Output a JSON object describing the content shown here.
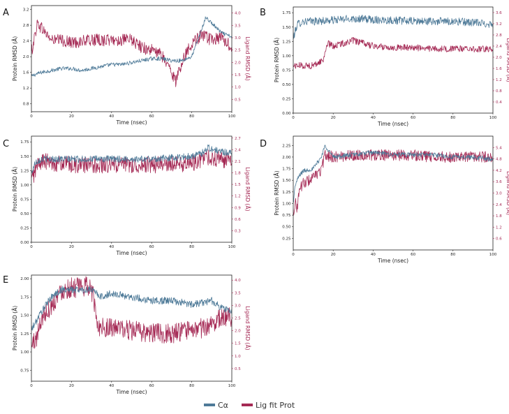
{
  "colors": {
    "protein": "#4e7a98",
    "ligand": "#a52a55",
    "frame": "#222222",
    "text": "#222222"
  },
  "legend": {
    "items": [
      {
        "label": "Cα",
        "color": "#4e7a98"
      },
      {
        "label": "Lig fit Prot",
        "color": "#a52a55"
      }
    ]
  },
  "chart_data": [
    {
      "panel": "A",
      "type": "line",
      "xlabel": "Time (nsec)",
      "ylabel": "Protein RMSD (Å)",
      "y2label": "Ligand RMSD (Å)",
      "xlim": [
        0,
        100
      ],
      "ylim": [
        0.6,
        3.3
      ],
      "y2lim": [
        0.0,
        4.3
      ],
      "xticks": [
        "0",
        "20",
        "40",
        "60",
        "80",
        "100"
      ],
      "yticks": [
        "0.8",
        "1.2",
        "1.6",
        "2.0",
        "2.4",
        "2.8",
        "3.2"
      ],
      "y2ticks": [
        "0.5",
        "1.0",
        "1.5",
        "2.0",
        "2.5",
        "3.0",
        "3.5",
        "4.0"
      ],
      "series": [
        {
          "name": "Cα",
          "axis": "left",
          "noise": 0.05,
          "x": [
            0,
            2,
            5,
            10,
            15,
            20,
            25,
            30,
            35,
            40,
            45,
            50,
            55,
            60,
            65,
            70,
            75,
            80,
            85,
            87,
            90,
            95,
            100
          ],
          "y": [
            1.5,
            1.55,
            1.6,
            1.65,
            1.7,
            1.7,
            1.65,
            1.7,
            1.75,
            1.8,
            1.8,
            1.85,
            1.9,
            1.95,
            1.95,
            1.9,
            1.9,
            2.0,
            2.7,
            3.0,
            2.85,
            2.6,
            2.5
          ]
        },
        {
          "name": "Lig fit Prot",
          "axis": "right",
          "noise": 0.25,
          "x": [
            0,
            3,
            6,
            10,
            15,
            20,
            30,
            40,
            50,
            55,
            60,
            65,
            70,
            72,
            75,
            80,
            85,
            90,
            95,
            100
          ],
          "y": [
            2.4,
            3.6,
            3.3,
            2.9,
            2.9,
            2.8,
            2.9,
            2.9,
            2.9,
            2.6,
            2.5,
            2.3,
            1.6,
            1.2,
            2.0,
            2.8,
            3.1,
            2.9,
            3.0,
            2.6
          ]
        }
      ]
    },
    {
      "panel": "B",
      "type": "line",
      "xlabel": "Time (nsec)",
      "ylabel": "Protein RMSD (Å)",
      "y2label": "Ligand RMSD (Å)",
      "xlim": [
        0,
        100
      ],
      "ylim": [
        0.0,
        1.85
      ],
      "y2lim": [
        0.0,
        3.8
      ],
      "xticks": [
        "0",
        "20",
        "40",
        "60",
        "80",
        "100"
      ],
      "yticks": [
        "0.00",
        "0.25",
        "0.50",
        "0.75",
        "1.00",
        "1.25",
        "1.50",
        "1.75"
      ],
      "y2ticks": [
        "0.4",
        "0.8",
        "1.2",
        "1.6",
        "2.0",
        "2.4",
        "2.8",
        "3.2",
        "3.6"
      ],
      "series": [
        {
          "name": "Cα",
          "axis": "left",
          "noise": 0.07,
          "x": [
            0,
            2,
            5,
            10,
            20,
            30,
            40,
            50,
            60,
            70,
            80,
            90,
            100
          ],
          "y": [
            1.3,
            1.55,
            1.6,
            1.6,
            1.62,
            1.65,
            1.63,
            1.62,
            1.6,
            1.6,
            1.6,
            1.58,
            1.55
          ]
        },
        {
          "name": "Lig fit Prot",
          "axis": "right",
          "noise": 0.12,
          "x": [
            0,
            5,
            10,
            15,
            17,
            20,
            30,
            40,
            50,
            60,
            70,
            80,
            90,
            100
          ],
          "y": [
            1.7,
            1.7,
            1.7,
            1.9,
            2.5,
            2.4,
            2.6,
            2.4,
            2.35,
            2.35,
            2.3,
            2.3,
            2.3,
            2.3
          ]
        }
      ]
    },
    {
      "panel": "C",
      "type": "line",
      "xlabel": "Time (nsec)",
      "ylabel": "Protein RMSD (Å)",
      "y2label": "Ligand RMSD (Å)",
      "xlim": [
        0,
        100
      ],
      "ylim": [
        0.0,
        1.85
      ],
      "y2lim": [
        0.0,
        2.75
      ],
      "xticks": [
        "0",
        "20",
        "40",
        "60",
        "80",
        "100"
      ],
      "yticks": [
        "0.00",
        "0.25",
        "0.50",
        "0.75",
        "1.00",
        "1.25",
        "1.50",
        "1.75"
      ],
      "y2ticks": [
        "0.3",
        "0.6",
        "0.9",
        "1.2",
        "1.5",
        "1.8",
        "2.1",
        "2.4",
        "2.7"
      ],
      "series": [
        {
          "name": "Cα",
          "axis": "left",
          "noise": 0.06,
          "x": [
            0,
            2,
            5,
            20,
            40,
            60,
            80,
            85,
            88,
            92,
            100
          ],
          "y": [
            1.2,
            1.4,
            1.45,
            1.45,
            1.45,
            1.45,
            1.5,
            1.55,
            1.65,
            1.6,
            1.55
          ]
        },
        {
          "name": "Lig fit Prot",
          "axis": "right",
          "noise": 0.22,
          "x": [
            0,
            3,
            5,
            20,
            40,
            60,
            80,
            88,
            92,
            100
          ],
          "y": [
            1.6,
            2.0,
            2.1,
            2.0,
            2.0,
            2.0,
            2.05,
            2.2,
            2.15,
            2.1
          ]
        }
      ]
    },
    {
      "panel": "D",
      "type": "line",
      "xlabel": "Time (nsec)",
      "ylabel": "Protein RMSD (Å)",
      "y2label": "Ligand RMSD (Å)",
      "xlim": [
        0,
        100
      ],
      "ylim": [
        0.0,
        2.45
      ],
      "y2lim": [
        0.0,
        6.0
      ],
      "xticks": [
        "0",
        "20",
        "40",
        "60",
        "80",
        "100"
      ],
      "yticks": [
        "0.25",
        "0.50",
        "0.75",
        "1.00",
        "1.25",
        "1.50",
        "1.75",
        "2.00",
        "2.25"
      ],
      "y2ticks": [
        "0.6",
        "1.2",
        "1.8",
        "2.4",
        "3.0",
        "3.6",
        "4.2",
        "4.8",
        "5.4"
      ],
      "series": [
        {
          "name": "Cα",
          "axis": "left",
          "noise": 0.05,
          "x": [
            0,
            1,
            3,
            5,
            10,
            14,
            16,
            20,
            30,
            40,
            50,
            60,
            70,
            80,
            90,
            100
          ],
          "y": [
            1.0,
            1.4,
            1.6,
            1.7,
            1.75,
            2.0,
            2.25,
            2.0,
            2.05,
            2.1,
            2.05,
            2.05,
            2.05,
            2.0,
            2.0,
            1.95
          ]
        },
        {
          "name": "Lig fit Prot",
          "axis": "right",
          "noise": 0.3,
          "x": [
            0,
            1,
            2,
            3,
            5,
            10,
            14,
            16,
            20,
            30,
            40,
            50,
            60,
            70,
            80,
            90,
            100
          ],
          "y": [
            2.0,
            2.5,
            2.2,
            3.2,
            3.5,
            3.8,
            4.2,
            5.0,
            4.9,
            5.0,
            5.0,
            5.0,
            5.0,
            4.9,
            4.9,
            4.9,
            4.9
          ]
        }
      ]
    },
    {
      "panel": "E",
      "type": "line",
      "xlabel": "Time (nsec)",
      "ylabel": "Protein RMSD (Å)",
      "y2label": "Ligand RMSD (Å)",
      "xlim": [
        0,
        100
      ],
      "ylim": [
        0.6,
        2.05
      ],
      "y2lim": [
        0.0,
        4.2
      ],
      "xticks": [
        "0",
        "20",
        "40",
        "60",
        "80",
        "100"
      ],
      "yticks": [
        "0.75",
        "1.00",
        "1.25",
        "1.50",
        "1.75",
        "2.00"
      ],
      "y2ticks": [
        "0.5",
        "1.0",
        "1.5",
        "2.0",
        "2.5",
        "3.0",
        "3.5",
        "4.0"
      ],
      "series": [
        {
          "name": "Cα",
          "axis": "left",
          "noise": 0.05,
          "x": [
            0,
            5,
            10,
            15,
            20,
            25,
            30,
            35,
            40,
            50,
            60,
            70,
            80,
            90,
            95,
            100
          ],
          "y": [
            1.3,
            1.55,
            1.75,
            1.85,
            1.85,
            1.85,
            1.85,
            1.75,
            1.8,
            1.75,
            1.7,
            1.7,
            1.65,
            1.7,
            1.6,
            1.55
          ]
        },
        {
          "name": "Lig fit Prot",
          "axis": "right",
          "noise": 0.4,
          "x": [
            0,
            3,
            5,
            10,
            15,
            20,
            25,
            29,
            31,
            33,
            40,
            50,
            60,
            70,
            80,
            90,
            95,
            100
          ],
          "y": [
            1.4,
            1.8,
            2.5,
            3.0,
            3.6,
            3.7,
            3.7,
            3.8,
            3.3,
            2.2,
            2.1,
            2.0,
            1.9,
            1.9,
            2.0,
            2.2,
            2.6,
            2.5
          ]
        }
      ]
    }
  ]
}
